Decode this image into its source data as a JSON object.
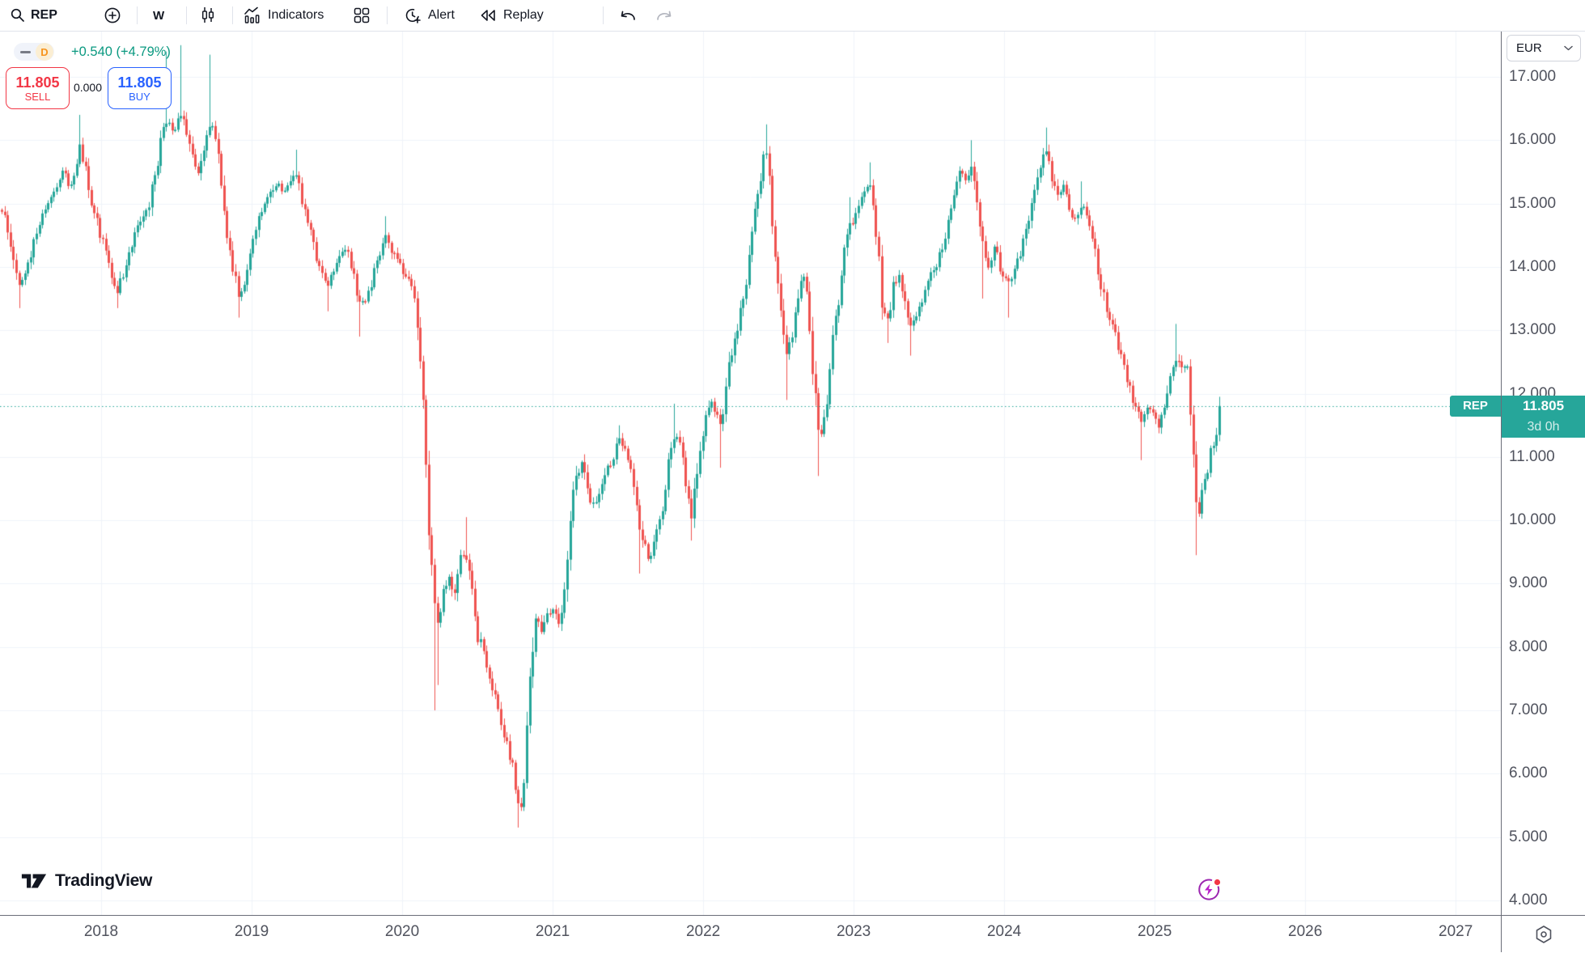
{
  "toolbar": {
    "symbol": "REP",
    "interval": "W",
    "indicators_label": "Indicators",
    "alert_label": "Alert",
    "replay_label": "Replay"
  },
  "legend": {
    "interval_badge": "D",
    "change_text": "+0.540 (+4.79%)",
    "sell_price": "11.805",
    "sell_label": "SELL",
    "spread": "0.000",
    "buy_price": "11.805",
    "buy_label": "BUY"
  },
  "price_scale": {
    "currency": "EUR",
    "ticks": [
      "17.000",
      "16.000",
      "15.000",
      "14.000",
      "13.000",
      "12.000",
      "11.000",
      "10.000",
      "9.000",
      "8.000",
      "7.000",
      "6.000",
      "5.000",
      "4.000"
    ],
    "last_price_label": "11.805",
    "countdown": "3d 0h",
    "symbol_tag": "REP"
  },
  "time_scale": {
    "years": [
      "2018",
      "2019",
      "2020",
      "2021",
      "2022",
      "2023",
      "2024",
      "2025",
      "2026",
      "2027"
    ]
  },
  "footer": {
    "brand": "TradingView"
  },
  "colors": {
    "up": "#26A69A",
    "down": "#EF5350",
    "label_bg": "#26A69A",
    "dotted_line": "#26A69A",
    "change_text": "#0A9980",
    "sell": "#F23645",
    "buy": "#2962FF",
    "grid": "#F0F3FA",
    "axis_text": "#50535E",
    "axis_border": "#6A6D78",
    "badge_text": "#F7941D",
    "badge_bg": "#FBEED3",
    "flash_purple": "#9C27B0",
    "alert_dot": "#F23645",
    "text": "#131722",
    "disabled": "#B2B5BE"
  },
  "chart_data": {
    "type": "candlestick",
    "symbol": "REP",
    "interval": "weekly",
    "currency": "EUR",
    "last_price": 11.805,
    "countdown": "3d 0h",
    "change": "+0.540 (+4.79%)",
    "price_range": [
      3.77,
      17.728
    ],
    "time_range": [
      2017.328,
      2027.3
    ],
    "price_ticks": [
      4,
      5,
      6,
      7,
      8,
      9,
      10,
      11,
      12,
      13,
      14,
      15,
      16,
      17
    ],
    "year_ticks": [
      2018,
      2019,
      2020,
      2021,
      2022,
      2023,
      2024,
      2025,
      2026,
      2027
    ],
    "grid": true,
    "anchors": [
      [
        2017.34,
        14.9
      ],
      [
        2017.38,
        14.55
      ],
      [
        2017.42,
        14.0
      ],
      [
        2017.46,
        13.7
      ],
      [
        2017.5,
        13.95
      ],
      [
        2017.54,
        14.3
      ],
      [
        2017.58,
        14.6
      ],
      [
        2017.63,
        14.95
      ],
      [
        2017.67,
        15.15
      ],
      [
        2017.71,
        15.35
      ],
      [
        2017.75,
        15.5
      ],
      [
        2017.79,
        15.25
      ],
      [
        2017.83,
        15.55
      ],
      [
        2017.86,
        15.9
      ],
      [
        2017.9,
        15.45
      ],
      [
        2017.94,
        15.0
      ],
      [
        2017.98,
        14.6
      ],
      [
        2018.02,
        14.35
      ],
      [
        2018.06,
        13.9
      ],
      [
        2018.1,
        13.6
      ],
      [
        2018.14,
        13.85
      ],
      [
        2018.19,
        14.3
      ],
      [
        2018.23,
        14.55
      ],
      [
        2018.27,
        14.75
      ],
      [
        2018.31,
        14.9
      ],
      [
        2018.35,
        15.4
      ],
      [
        2018.4,
        16.0
      ],
      [
        2018.44,
        16.35
      ],
      [
        2018.48,
        16.1
      ],
      [
        2018.52,
        16.45
      ],
      [
        2018.56,
        16.2
      ],
      [
        2018.6,
        15.8
      ],
      [
        2018.64,
        15.5
      ],
      [
        2018.68,
        15.9
      ],
      [
        2018.72,
        16.3
      ],
      [
        2018.76,
        16.0
      ],
      [
        2018.8,
        15.3
      ],
      [
        2018.84,
        14.5
      ],
      [
        2018.88,
        13.9
      ],
      [
        2018.92,
        13.5
      ],
      [
        2018.96,
        13.9
      ],
      [
        2019.0,
        14.3
      ],
      [
        2019.04,
        14.7
      ],
      [
        2019.09,
        15.0
      ],
      [
        2019.13,
        15.2
      ],
      [
        2019.17,
        15.35
      ],
      [
        2019.21,
        15.2
      ],
      [
        2019.25,
        15.3
      ],
      [
        2019.29,
        15.5
      ],
      [
        2019.33,
        15.1
      ],
      [
        2019.38,
        14.6
      ],
      [
        2019.42,
        14.2
      ],
      [
        2019.46,
        13.9
      ],
      [
        2019.5,
        13.7
      ],
      [
        2019.54,
        13.9
      ],
      [
        2019.58,
        14.15
      ],
      [
        2019.63,
        14.3
      ],
      [
        2019.67,
        13.9
      ],
      [
        2019.71,
        13.5
      ],
      [
        2019.75,
        13.4
      ],
      [
        2019.79,
        13.7
      ],
      [
        2019.83,
        14.1
      ],
      [
        2019.88,
        14.5
      ],
      [
        2019.92,
        14.3
      ],
      [
        2019.96,
        14.1
      ],
      [
        2020.0,
        13.95
      ],
      [
        2020.04,
        13.8
      ],
      [
        2020.08,
        13.55
      ],
      [
        2020.12,
        12.4
      ],
      [
        2020.15,
        11.2
      ],
      [
        2020.18,
        9.6
      ],
      [
        2020.21,
        8.8
      ],
      [
        2020.24,
        8.3
      ],
      [
        2020.27,
        8.9
      ],
      [
        2020.31,
        9.1
      ],
      [
        2020.35,
        8.8
      ],
      [
        2020.38,
        9.4
      ],
      [
        2020.42,
        9.5
      ],
      [
        2020.46,
        8.9
      ],
      [
        2020.5,
        8.2
      ],
      [
        2020.54,
        7.9
      ],
      [
        2020.58,
        7.5
      ],
      [
        2020.62,
        7.2
      ],
      [
        2020.66,
        6.8
      ],
      [
        2020.7,
        6.4
      ],
      [
        2020.74,
        6.0
      ],
      [
        2020.77,
        5.6
      ],
      [
        2020.8,
        5.45
      ],
      [
        2020.83,
        6.6
      ],
      [
        2020.86,
        7.9
      ],
      [
        2020.89,
        8.5
      ],
      [
        2020.92,
        8.2
      ],
      [
        2020.96,
        8.5
      ],
      [
        2021.0,
        8.6
      ],
      [
        2021.04,
        8.4
      ],
      [
        2021.08,
        8.9
      ],
      [
        2021.12,
        10.0
      ],
      [
        2021.15,
        10.7
      ],
      [
        2021.19,
        10.9
      ],
      [
        2021.23,
        10.5
      ],
      [
        2021.27,
        10.2
      ],
      [
        2021.31,
        10.4
      ],
      [
        2021.35,
        10.7
      ],
      [
        2021.4,
        11.0
      ],
      [
        2021.44,
        11.25
      ],
      [
        2021.48,
        11.1
      ],
      [
        2021.52,
        10.8
      ],
      [
        2021.56,
        10.3
      ],
      [
        2021.58,
        9.9
      ],
      [
        2021.62,
        9.5
      ],
      [
        2021.65,
        9.4
      ],
      [
        2021.69,
        9.8
      ],
      [
        2021.73,
        10.1
      ],
      [
        2021.77,
        10.9
      ],
      [
        2021.81,
        11.4
      ],
      [
        2021.85,
        11.2
      ],
      [
        2021.88,
        10.7
      ],
      [
        2021.92,
        10.1
      ],
      [
        2021.96,
        10.9
      ],
      [
        2022.0,
        11.5
      ],
      [
        2022.04,
        11.9
      ],
      [
        2022.08,
        11.7
      ],
      [
        2022.12,
        11.4
      ],
      [
        2022.16,
        12.4
      ],
      [
        2022.2,
        12.8
      ],
      [
        2022.25,
        13.3
      ],
      [
        2022.29,
        13.8
      ],
      [
        2022.33,
        14.6
      ],
      [
        2022.37,
        15.3
      ],
      [
        2022.41,
        16.0
      ],
      [
        2022.44,
        15.3
      ],
      [
        2022.48,
        14.2
      ],
      [
        2022.52,
        13.3
      ],
      [
        2022.55,
        12.6
      ],
      [
        2022.59,
        12.9
      ],
      [
        2022.63,
        13.5
      ],
      [
        2022.67,
        13.9
      ],
      [
        2022.71,
        13.0
      ],
      [
        2022.74,
        11.9
      ],
      [
        2022.77,
        11.15
      ],
      [
        2022.81,
        11.7
      ],
      [
        2022.85,
        12.6
      ],
      [
        2022.89,
        13.4
      ],
      [
        2022.93,
        14.1
      ],
      [
        2022.97,
        14.6
      ],
      [
        2023.01,
        14.8
      ],
      [
        2023.06,
        15.1
      ],
      [
        2023.1,
        15.35
      ],
      [
        2023.14,
        14.8
      ],
      [
        2023.18,
        13.6
      ],
      [
        2023.22,
        13.1
      ],
      [
        2023.26,
        13.7
      ],
      [
        2023.3,
        13.9
      ],
      [
        2023.34,
        13.4
      ],
      [
        2023.38,
        13.1
      ],
      [
        2023.42,
        13.3
      ],
      [
        2023.46,
        13.5
      ],
      [
        2023.5,
        13.8
      ],
      [
        2023.54,
        14.0
      ],
      [
        2023.58,
        14.3
      ],
      [
        2023.62,
        14.6
      ],
      [
        2023.66,
        15.0
      ],
      [
        2023.7,
        15.5
      ],
      [
        2023.74,
        15.4
      ],
      [
        2023.78,
        15.6
      ],
      [
        2023.82,
        15.0
      ],
      [
        2023.86,
        14.2
      ],
      [
        2023.9,
        14.0
      ],
      [
        2023.94,
        14.3
      ],
      [
        2023.98,
        13.9
      ],
      [
        2024.02,
        13.7
      ],
      [
        2024.06,
        13.9
      ],
      [
        2024.1,
        14.2
      ],
      [
        2024.15,
        14.6
      ],
      [
        2024.19,
        15.0
      ],
      [
        2024.23,
        15.5
      ],
      [
        2024.27,
        15.9
      ],
      [
        2024.31,
        15.5
      ],
      [
        2024.35,
        15.1
      ],
      [
        2024.39,
        15.3
      ],
      [
        2024.43,
        14.9
      ],
      [
        2024.47,
        14.7
      ],
      [
        2024.51,
        15.0
      ],
      [
        2024.55,
        14.8
      ],
      [
        2024.59,
        14.4
      ],
      [
        2024.63,
        13.9
      ],
      [
        2024.67,
        13.4
      ],
      [
        2024.71,
        13.1
      ],
      [
        2024.75,
        12.8
      ],
      [
        2024.79,
        12.4
      ],
      [
        2024.83,
        12.1
      ],
      [
        2024.87,
        11.8
      ],
      [
        2024.91,
        11.5
      ],
      [
        2024.95,
        11.8
      ],
      [
        2024.99,
        11.7
      ],
      [
        2025.03,
        11.5
      ],
      [
        2025.07,
        11.8
      ],
      [
        2025.11,
        12.3
      ],
      [
        2025.14,
        12.6
      ],
      [
        2025.18,
        12.35
      ],
      [
        2025.22,
        12.45
      ],
      [
        2025.25,
        11.3
      ],
      [
        2025.28,
        9.9
      ],
      [
        2025.31,
        10.35
      ],
      [
        2025.34,
        10.75
      ],
      [
        2025.36,
        10.8
      ],
      [
        2025.38,
        11.3
      ],
      [
        2025.4,
        11.1
      ],
      [
        2025.42,
        11.805
      ]
    ],
    "wick_highs": [
      [
        2017.86,
        16.4
      ],
      [
        2018.44,
        17.4
      ],
      [
        2018.52,
        17.5
      ],
      [
        2018.72,
        17.35
      ],
      [
        2019.29,
        15.85
      ],
      [
        2019.88,
        14.8
      ],
      [
        2020.42,
        10.05
      ],
      [
        2021.44,
        11.5
      ],
      [
        2021.81,
        11.84
      ],
      [
        2022.16,
        12.66
      ],
      [
        2022.41,
        16.25
      ],
      [
        2022.97,
        15.1
      ],
      [
        2023.1,
        15.65
      ],
      [
        2023.78,
        16.0
      ],
      [
        2024.27,
        16.2
      ],
      [
        2024.51,
        15.35
      ],
      [
        2025.14,
        13.1
      ],
      [
        2025.42,
        11.95
      ]
    ],
    "wick_lows": [
      [
        2017.46,
        13.35
      ],
      [
        2018.1,
        13.35
      ],
      [
        2018.92,
        13.2
      ],
      [
        2019.5,
        13.3
      ],
      [
        2019.71,
        12.9
      ],
      [
        2020.21,
        7.0
      ],
      [
        2020.24,
        7.4
      ],
      [
        2020.77,
        5.15
      ],
      [
        2021.58,
        9.16
      ],
      [
        2021.92,
        9.68
      ],
      [
        2022.12,
        10.83
      ],
      [
        2022.55,
        11.9
      ],
      [
        2022.77,
        10.7
      ],
      [
        2023.22,
        12.8
      ],
      [
        2023.38,
        12.6
      ],
      [
        2023.86,
        13.5
      ],
      [
        2024.02,
        13.2
      ],
      [
        2024.91,
        10.95
      ],
      [
        2025.28,
        9.45
      ]
    ]
  }
}
